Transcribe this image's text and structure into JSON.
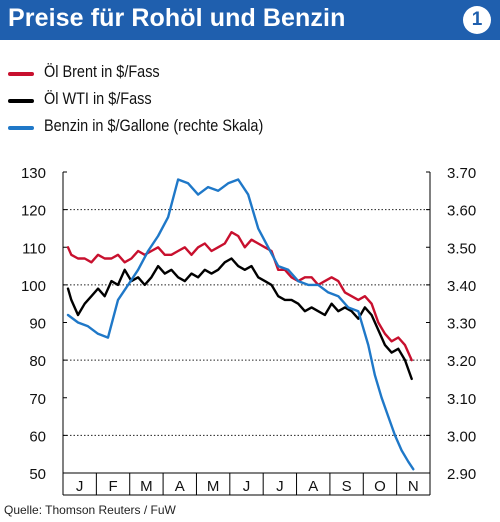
{
  "header": {
    "title": "Preise für Rohöl und Benzin",
    "badge": "1"
  },
  "colors": {
    "accent": "#1f5fae",
    "brent": "#c8102e",
    "wti": "#000000",
    "benzin": "#1f78c8"
  },
  "source": "Quelle: Thomson Reuters / FuW",
  "chart_data": {
    "type": "line",
    "x_categories": [
      "J",
      "F",
      "M",
      "A",
      "M",
      "J",
      "J",
      "A",
      "S",
      "O",
      "N"
    ],
    "left_axis": {
      "ticks": [
        "130",
        "120",
        "110",
        "100",
        "90",
        "80",
        "70",
        "60",
        "50"
      ],
      "range": [
        50,
        130
      ]
    },
    "right_axis": {
      "ticks": [
        "3.70",
        "3.60",
        "3.50",
        "3.40",
        "3.30",
        "3.20",
        "3.10",
        "3.00",
        "2.90"
      ],
      "range": [
        2.9,
        3.7
      ]
    },
    "gridlines_left": [
      120,
      100,
      80,
      60
    ],
    "series": [
      {
        "name": "Öl Brent in $/Fass",
        "axis": "left",
        "color": "#c8102e",
        "x": [
          0,
          0.1,
          0.3,
          0.5,
          0.7,
          0.9,
          1.1,
          1.3,
          1.5,
          1.7,
          1.9,
          2.1,
          2.3,
          2.5,
          2.7,
          2.9,
          3.1,
          3.3,
          3.5,
          3.7,
          3.9,
          4.1,
          4.3,
          4.5,
          4.7,
          4.9,
          5.1,
          5.3,
          5.5,
          5.7,
          5.9,
          6.1,
          6.3,
          6.5,
          6.7,
          6.9,
          7.1,
          7.3,
          7.5,
          7.7,
          7.9,
          8.1,
          8.3,
          8.5,
          8.7,
          8.9,
          9.1,
          9.3,
          9.5,
          9.7,
          9.9,
          10.1,
          10.3
        ],
        "values": [
          110,
          108,
          107,
          107,
          106,
          108,
          107,
          107,
          108,
          106,
          107,
          109,
          108,
          109,
          110,
          108,
          108,
          109,
          110,
          108,
          110,
          111,
          109,
          110,
          111,
          114,
          113,
          110,
          112,
          111,
          110,
          109,
          104,
          104,
          102,
          101,
          102,
          102,
          100,
          101,
          102,
          101,
          98,
          97,
          96,
          97,
          95,
          90,
          87,
          85,
          86,
          84,
          80
        ]
      },
      {
        "name": "Öl WTI in $/Fass",
        "axis": "left",
        "color": "#000000",
        "x": [
          0,
          0.1,
          0.3,
          0.5,
          0.7,
          0.9,
          1.1,
          1.3,
          1.5,
          1.7,
          1.9,
          2.1,
          2.3,
          2.5,
          2.7,
          2.9,
          3.1,
          3.3,
          3.5,
          3.7,
          3.9,
          4.1,
          4.3,
          4.5,
          4.7,
          4.9,
          5.1,
          5.3,
          5.5,
          5.7,
          5.9,
          6.1,
          6.3,
          6.5,
          6.7,
          6.9,
          7.1,
          7.3,
          7.5,
          7.7,
          7.9,
          8.1,
          8.3,
          8.5,
          8.7,
          8.9,
          9.1,
          9.3,
          9.5,
          9.7,
          9.9,
          10.1,
          10.3
        ],
        "values": [
          99,
          96,
          92,
          95,
          97,
          99,
          97,
          101,
          100,
          104,
          101,
          102,
          100,
          102,
          105,
          103,
          104,
          102,
          101,
          103,
          102,
          104,
          103,
          104,
          106,
          107,
          105,
          104,
          105,
          102,
          101,
          100,
          97,
          96,
          96,
          95,
          93,
          94,
          93,
          92,
          95,
          93,
          94,
          93,
          91,
          94,
          92,
          88,
          84,
          82,
          83,
          80,
          75
        ]
      },
      {
        "name": "Benzin in $/Gallone (rechte Skala)",
        "axis": "right",
        "color": "#1f78c8",
        "x": [
          0,
          0.3,
          0.6,
          0.9,
          1.2,
          1.5,
          1.8,
          2.1,
          2.4,
          2.7,
          3.0,
          3.3,
          3.6,
          3.9,
          4.2,
          4.5,
          4.8,
          5.1,
          5.4,
          5.7,
          6.0,
          6.3,
          6.6,
          6.9,
          7.2,
          7.5,
          7.8,
          8.1,
          8.4,
          8.7,
          9.0,
          9.2,
          9.4,
          9.6,
          9.8,
          10.0,
          10.2,
          10.35
        ],
        "values": [
          3.32,
          3.3,
          3.29,
          3.27,
          3.26,
          3.36,
          3.4,
          3.44,
          3.49,
          3.53,
          3.58,
          3.68,
          3.67,
          3.64,
          3.66,
          3.65,
          3.67,
          3.68,
          3.64,
          3.55,
          3.5,
          3.45,
          3.44,
          3.41,
          3.4,
          3.4,
          3.38,
          3.37,
          3.34,
          3.33,
          3.24,
          3.16,
          3.1,
          3.05,
          3.0,
          2.96,
          2.93,
          2.91
        ]
      }
    ]
  }
}
